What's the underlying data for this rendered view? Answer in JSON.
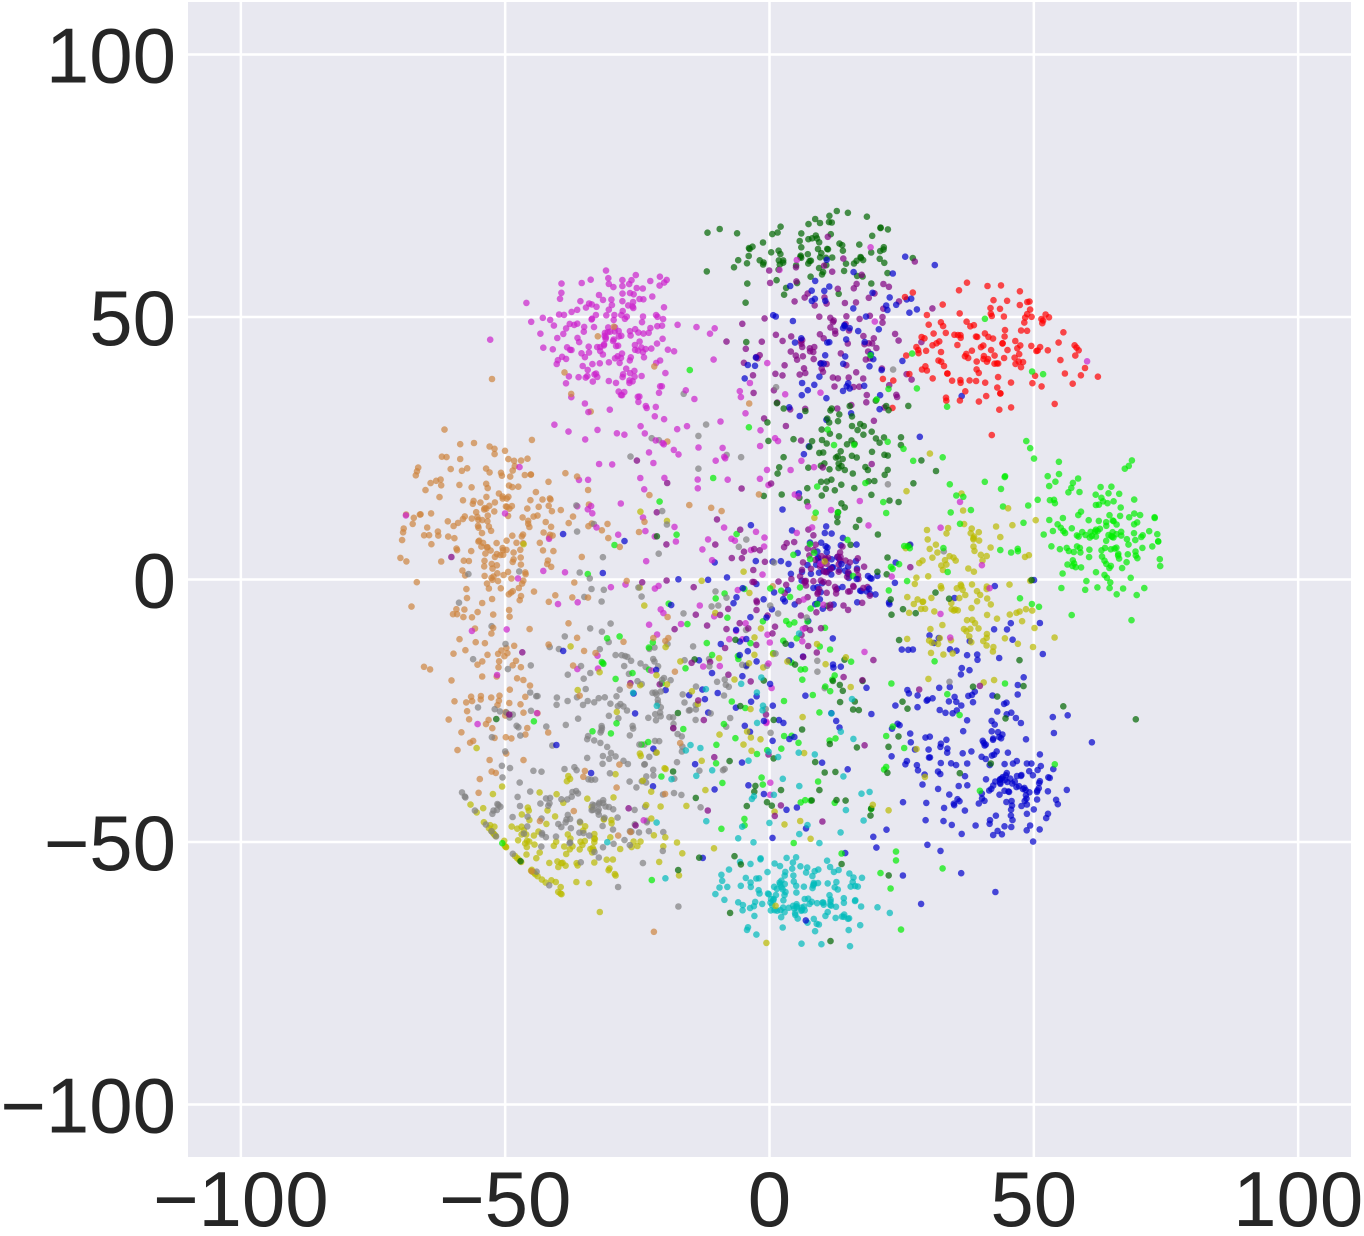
{
  "chart_data": {
    "type": "scatter",
    "title": "",
    "xlabel": "",
    "ylabel": "",
    "xlim": [
      -110,
      110
    ],
    "ylim": [
      -110,
      110
    ],
    "grid": true,
    "legend": "none",
    "background_color": "#e8e8f0",
    "grid_color": "#ffffff",
    "x_ticks": [
      -100,
      -50,
      0,
      50,
      100
    ],
    "y_ticks": [
      -100,
      -50,
      0,
      50,
      100
    ],
    "x_tick_labels": [
      "−100",
      "−50",
      "0",
      "50",
      "100"
    ],
    "y_tick_labels": [
      "−100",
      "−50",
      "0",
      "50",
      "100"
    ],
    "point_alpha": 0.7,
    "point_count": 3000,
    "clusters": [
      {
        "color": "#cc22cc",
        "center": [
          -30,
          47
        ],
        "spread": [
          7,
          7
        ],
        "weight": 7
      },
      {
        "color": "#006600",
        "center": [
          8,
          62
        ],
        "spread": [
          8,
          4
        ],
        "weight": 4
      },
      {
        "color": "#800080",
        "center": [
          12,
          45
        ],
        "spread": [
          8,
          8
        ],
        "weight": 5
      },
      {
        "color": "#0000cc",
        "center": [
          14,
          44
        ],
        "spread": [
          8,
          8
        ],
        "weight": 3
      },
      {
        "color": "#ff0000",
        "center": [
          42,
          44
        ],
        "spread": [
          9,
          6
        ],
        "weight": 6
      },
      {
        "color": "#006600",
        "center": [
          14,
          22
        ],
        "spread": [
          6,
          7
        ],
        "weight": 4
      },
      {
        "color": "#00ee00",
        "center": [
          62,
          8
        ],
        "spread": [
          7,
          6
        ],
        "weight": 6
      },
      {
        "color": "#cd853f",
        "center": [
          -52,
          12
        ],
        "spread": [
          8,
          8
        ],
        "weight": 7
      },
      {
        "color": "#cd853f",
        "center": [
          -52,
          -15
        ],
        "spread": [
          5,
          12
        ],
        "weight": 4
      },
      {
        "color": "#808080",
        "center": [
          -28,
          -25
        ],
        "spread": [
          12,
          10
        ],
        "weight": 6
      },
      {
        "color": "#bbbb00",
        "center": [
          -40,
          -50
        ],
        "spread": [
          10,
          5
        ],
        "weight": 5
      },
      {
        "color": "#808080",
        "center": [
          -38,
          -45
        ],
        "spread": [
          10,
          6
        ],
        "weight": 4
      },
      {
        "color": "#0000cc",
        "center": [
          38,
          -30
        ],
        "spread": [
          8,
          12
        ],
        "weight": 6
      },
      {
        "color": "#0000cc",
        "center": [
          46,
          -40
        ],
        "spread": [
          4,
          4
        ],
        "weight": 3
      },
      {
        "color": "#00bbbb",
        "center": [
          5,
          -60
        ],
        "spread": [
          7,
          4
        ],
        "weight": 6
      },
      {
        "color": "#bbbb00",
        "center": [
          36,
          2
        ],
        "spread": [
          5,
          8
        ],
        "weight": 3
      },
      {
        "color": "#bbbb00",
        "center": [
          40,
          -8
        ],
        "spread": [
          6,
          4
        ],
        "weight": 2
      },
      {
        "color": "#0000cc",
        "center": [
          12,
          2
        ],
        "spread": [
          6,
          4
        ],
        "weight": 3
      },
      {
        "color": "#800080",
        "center": [
          10,
          0
        ],
        "spread": [
          6,
          4
        ],
        "weight": 3
      },
      {
        "color": "#00ee00",
        "center": [
          2,
          -20
        ],
        "spread": [
          20,
          18
        ],
        "weight": 5
      },
      {
        "color": "#cc22cc",
        "center": [
          -10,
          5
        ],
        "spread": [
          22,
          20
        ],
        "weight": 4
      },
      {
        "color": "#0000cc",
        "center": [
          0,
          -20
        ],
        "spread": [
          18,
          18
        ],
        "weight": 4
      },
      {
        "color": "#006600",
        "center": [
          10,
          -30
        ],
        "spread": [
          20,
          16
        ],
        "weight": 3
      },
      {
        "color": "#bbbb00",
        "center": [
          -10,
          -25
        ],
        "spread": [
          18,
          18
        ],
        "weight": 3
      },
      {
        "color": "#800080",
        "center": [
          -5,
          -10
        ],
        "spread": [
          20,
          18
        ],
        "weight": 3
      },
      {
        "color": "#808080",
        "center": [
          -15,
          -5
        ],
        "spread": [
          20,
          20
        ],
        "weight": 3
      },
      {
        "color": "#cd853f",
        "center": [
          -35,
          -5
        ],
        "spread": [
          15,
          20
        ],
        "weight": 3
      },
      {
        "color": "#cc22cc",
        "center": [
          -20,
          25
        ],
        "spread": [
          12,
          12
        ],
        "weight": 3
      },
      {
        "color": "#00ee00",
        "center": [
          30,
          20
        ],
        "spread": [
          15,
          12
        ],
        "weight": 2
      },
      {
        "color": "#00bbbb",
        "center": [
          0,
          -40
        ],
        "spread": [
          15,
          10
        ],
        "weight": 2
      }
    ]
  }
}
